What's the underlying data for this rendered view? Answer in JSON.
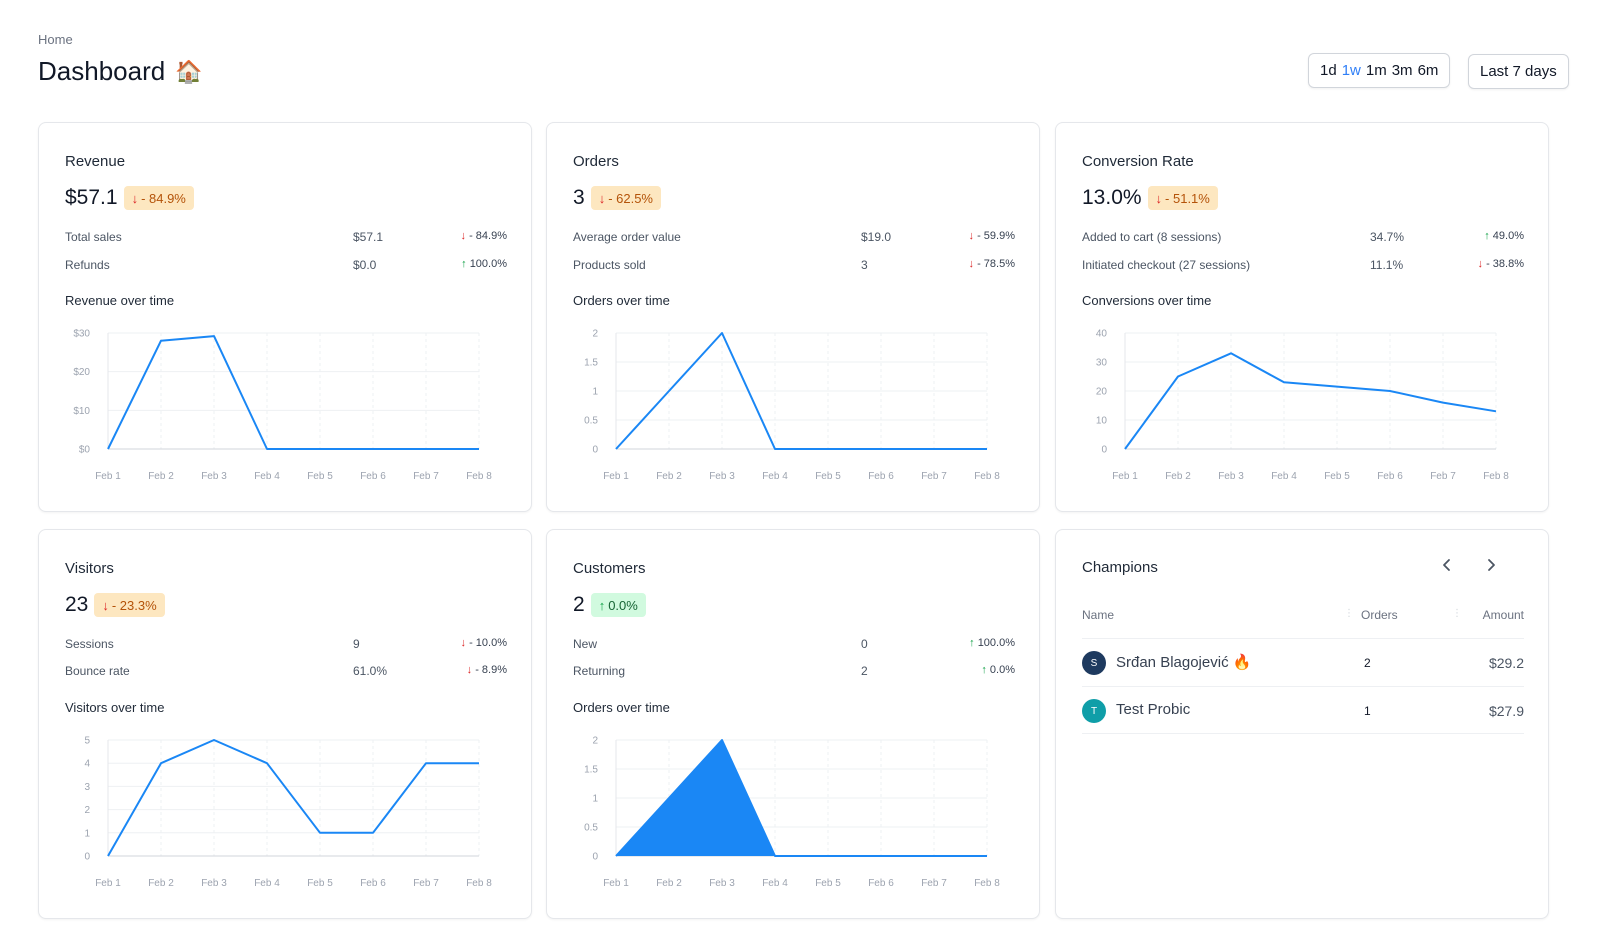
{
  "header": {
    "breadcrumb": "Home",
    "title": "Dashboard",
    "title_emoji": "🏠",
    "ranges": [
      "1d",
      "1w",
      "1m",
      "3m",
      "6m"
    ],
    "active_range": "1w",
    "period_label": "Last 7 days"
  },
  "colors": {
    "accent": "#2f7ff7",
    "line": "#1a87f5",
    "down_badge_bg": "#fde7c0",
    "up_badge_bg": "#d1fadf"
  },
  "cards": {
    "revenue": {
      "title": "Revenue",
      "value": "$57.1",
      "delta": "- 84.9%",
      "delta_dir": "down",
      "metrics": [
        {
          "label": "Total sales",
          "value": "$57.1",
          "delta": "- 84.9%",
          "dir": "down"
        },
        {
          "label": "Refunds",
          "value": "$0.0",
          "delta": "100.0%",
          "dir": "up"
        }
      ],
      "chart_title": "Revenue over time"
    },
    "orders": {
      "title": "Orders",
      "value": "3",
      "delta": "- 62.5%",
      "delta_dir": "down",
      "metrics": [
        {
          "label": "Average order value",
          "value": "$19.0",
          "delta": "- 59.9%",
          "dir": "down"
        },
        {
          "label": "Products sold",
          "value": "3",
          "delta": "- 78.5%",
          "dir": "down"
        }
      ],
      "chart_title": "Orders over time"
    },
    "conversion": {
      "title": "Conversion Rate",
      "value": "13.0%",
      "delta": "- 51.1%",
      "delta_dir": "down",
      "metrics": [
        {
          "label": "Added to cart (8 sessions)",
          "value": "34.7%",
          "delta": "49.0%",
          "dir": "up"
        },
        {
          "label": "Initiated checkout (27 sessions)",
          "value": "11.1%",
          "delta": "- 38.8%",
          "dir": "down"
        }
      ],
      "chart_title": "Conversions over time"
    },
    "visitors": {
      "title": "Visitors",
      "value": "23",
      "delta": "- 23.3%",
      "delta_dir": "down",
      "metrics": [
        {
          "label": "Sessions",
          "value": "9",
          "delta": "- 10.0%",
          "dir": "down"
        },
        {
          "label": "Bounce rate",
          "value": "61.0%",
          "delta": "- 8.9%",
          "dir": "down"
        }
      ],
      "chart_title": "Visitors over time"
    },
    "customers": {
      "title": "Customers",
      "value": "2",
      "delta": "0.0%",
      "delta_dir": "up",
      "metrics": [
        {
          "label": "New",
          "value": "0",
          "delta": "100.0%",
          "dir": "up"
        },
        {
          "label": "Returning",
          "value": "2",
          "delta": "0.0%",
          "dir": "up"
        }
      ],
      "chart_title": "Orders over time"
    },
    "champions": {
      "title": "Champions",
      "columns": {
        "name": "Name",
        "orders": "Orders",
        "amount": "Amount"
      },
      "rows": [
        {
          "initial": "S",
          "name": "Srđan Blagojević 🔥",
          "orders": "2",
          "amount": "$29.2",
          "avatar_color": "#1e3a5f"
        },
        {
          "initial": "T",
          "name": "Test Probic",
          "orders": "1",
          "amount": "$27.9",
          "avatar_color": "#0f9ea8"
        }
      ]
    }
  },
  "chart_data": [
    {
      "id": "revenue",
      "type": "line",
      "title": "Revenue over time",
      "x": [
        "Feb 1",
        "Feb 2",
        "Feb 3",
        "Feb 4",
        "Feb 5",
        "Feb 6",
        "Feb 7",
        "Feb 8"
      ],
      "values": [
        0,
        28,
        29.2,
        0,
        0,
        0,
        0,
        0
      ],
      "yticks": [
        0,
        10,
        20,
        30
      ],
      "ytick_labels": [
        "$0",
        "$10",
        "$20",
        "$30"
      ],
      "ylim": [
        0,
        30
      ],
      "grid": true
    },
    {
      "id": "orders",
      "type": "line",
      "title": "Orders over time",
      "x": [
        "Feb 1",
        "Feb 2",
        "Feb 3",
        "Feb 4",
        "Feb 5",
        "Feb 6",
        "Feb 7",
        "Feb 8"
      ],
      "values": [
        0,
        1,
        2,
        0,
        0,
        0,
        0,
        0
      ],
      "yticks": [
        0,
        0.5,
        1,
        1.5,
        2
      ],
      "ytick_labels": [
        "0",
        "0.5",
        "1",
        "1.5",
        "2"
      ],
      "ylim": [
        0,
        2
      ],
      "grid": true
    },
    {
      "id": "conversion",
      "type": "line",
      "title": "Conversions over time",
      "x": [
        "Feb 1",
        "Feb 2",
        "Feb 3",
        "Feb 4",
        "Feb 5",
        "Feb 6",
        "Feb 7",
        "Feb 8"
      ],
      "values": [
        0,
        25,
        33,
        23,
        21.5,
        20,
        16,
        13
      ],
      "yticks": [
        0,
        10,
        20,
        30,
        40
      ],
      "ytick_labels": [
        "0",
        "10",
        "20",
        "30",
        "40"
      ],
      "ylim": [
        0,
        40
      ],
      "grid": true
    },
    {
      "id": "visitors",
      "type": "line",
      "title": "Visitors over time",
      "x": [
        "Feb 1",
        "Feb 2",
        "Feb 3",
        "Feb 4",
        "Feb 5",
        "Feb 6",
        "Feb 7",
        "Feb 8"
      ],
      "values": [
        0,
        4,
        5,
        4,
        1,
        1,
        4,
        4
      ],
      "yticks": [
        0,
        1,
        2,
        3,
        4,
        5
      ],
      "ytick_labels": [
        "0",
        "1",
        "2",
        "3",
        "4",
        "5"
      ],
      "ylim": [
        0,
        5
      ],
      "grid": true
    },
    {
      "id": "customers",
      "type": "area",
      "title": "Orders over time",
      "x": [
        "Feb 1",
        "Feb 2",
        "Feb 3",
        "Feb 4",
        "Feb 5",
        "Feb 6",
        "Feb 7",
        "Feb 8"
      ],
      "values": [
        0,
        1,
        2,
        0,
        0,
        0,
        0,
        0
      ],
      "yticks": [
        0,
        0.5,
        1,
        1.5,
        2
      ],
      "ytick_labels": [
        "0",
        "0.5",
        "1",
        "1.5",
        "2"
      ],
      "ylim": [
        0,
        2
      ],
      "grid": true
    }
  ]
}
